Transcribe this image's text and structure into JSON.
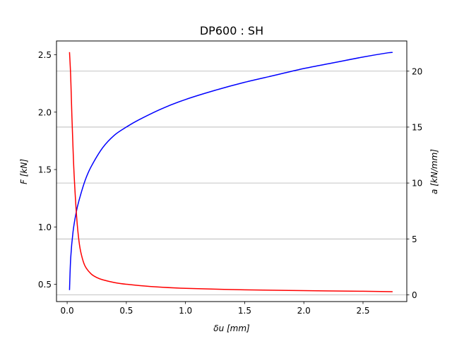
{
  "chart_data": {
    "type": "line",
    "title": "DP600 : SH",
    "xlabel": "δu [mm]",
    "ylabel_left": "F [kN]",
    "ylabel_right": "a [kN/mm]",
    "xlim": [
      -0.09,
      2.87
    ],
    "ylim_left": [
      0.35,
      2.62
    ],
    "ylim_right": [
      -0.6,
      22.7
    ],
    "x_ticks": [
      0.0,
      0.5,
      1.0,
      1.5,
      2.0,
      2.5
    ],
    "x_tick_labels": [
      "0.0",
      "0.5",
      "1.0",
      "1.5",
      "2.0",
      "2.5"
    ],
    "y_left_ticks": [
      0.5,
      1.0,
      1.5,
      2.0,
      2.5
    ],
    "y_left_tick_labels": [
      "0.5",
      "1.0",
      "1.5",
      "2.0",
      "2.5"
    ],
    "y_right_ticks": [
      0,
      5,
      10,
      15,
      20
    ],
    "y_right_tick_labels": [
      "0",
      "5",
      "10",
      "15",
      "20"
    ],
    "grid": "horizontal, right axis",
    "series": [
      {
        "axis": "left",
        "color": "#0000ff",
        "x": [
          0.02,
          0.03,
          0.05,
          0.075,
          0.1,
          0.15,
          0.2,
          0.3,
          0.4,
          0.5,
          0.6,
          0.8,
          1.0,
          1.25,
          1.5,
          1.75,
          2.0,
          2.25,
          2.5,
          2.7,
          2.75
        ],
        "y": [
          0.45,
          0.73,
          0.96,
          1.12,
          1.23,
          1.4,
          1.52,
          1.69,
          1.8,
          1.87,
          1.93,
          2.03,
          2.11,
          2.19,
          2.26,
          2.32,
          2.38,
          2.43,
          2.48,
          2.515,
          2.52
        ]
      },
      {
        "axis": "right",
        "color": "#ff0000",
        "x": [
          0.02,
          0.03,
          0.04,
          0.05,
          0.06,
          0.08,
          0.1,
          0.12,
          0.15,
          0.2,
          0.25,
          0.3,
          0.4,
          0.5,
          0.7,
          1.0,
          1.5,
          2.0,
          2.5,
          2.75
        ],
        "y": [
          21.7,
          19.5,
          16.0,
          13.0,
          10.5,
          7.0,
          4.8,
          3.6,
          2.6,
          1.9,
          1.55,
          1.35,
          1.1,
          0.95,
          0.75,
          0.58,
          0.45,
          0.38,
          0.32,
          0.28
        ]
      }
    ]
  }
}
